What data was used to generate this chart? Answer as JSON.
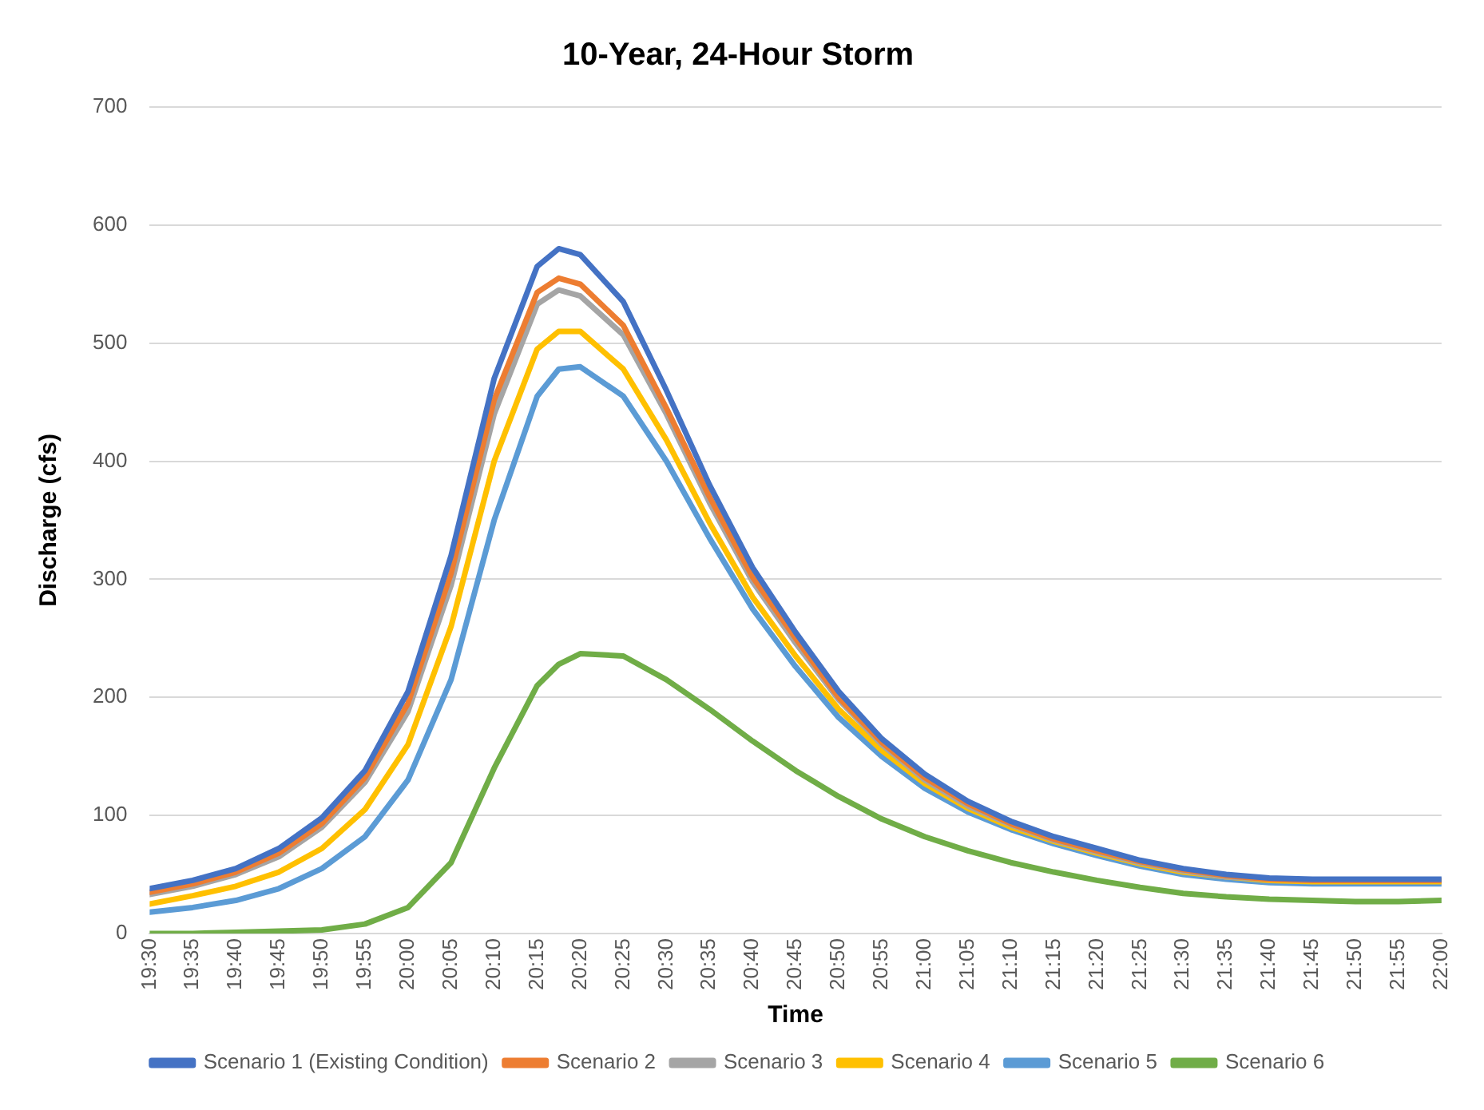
{
  "chart_data": {
    "type": "line",
    "title": "10-Year, 24-Hour Storm",
    "xlabel": "Time",
    "ylabel": "Discharge (cfs)",
    "x": [
      19.5,
      19.5833,
      19.6667,
      19.75,
      19.8333,
      19.9167,
      20,
      20.0833,
      20.1667,
      20.25,
      20.2917,
      20.3333,
      20.4167,
      20.5,
      20.5833,
      20.6667,
      20.75,
      20.8333,
      20.9167,
      21,
      21.0833,
      21.1667,
      21.25,
      21.3333,
      21.4167,
      21.5,
      21.5833,
      21.6667,
      21.75,
      21.8333,
      21.9167,
      22
    ],
    "xlim": [
      19.5,
      22
    ],
    "xticks": [
      {
        "value": 19.5,
        "label": "19:30"
      },
      {
        "value": 19.5833,
        "label": "19:35"
      },
      {
        "value": 19.6667,
        "label": "19:40"
      },
      {
        "value": 19.75,
        "label": "19:45"
      },
      {
        "value": 19.8333,
        "label": "19:50"
      },
      {
        "value": 19.9167,
        "label": "19:55"
      },
      {
        "value": 20,
        "label": "20:00"
      },
      {
        "value": 20.0833,
        "label": "20:05"
      },
      {
        "value": 20.1667,
        "label": "20:10"
      },
      {
        "value": 20.25,
        "label": "20:15"
      },
      {
        "value": 20.3333,
        "label": "20:20"
      },
      {
        "value": 20.4167,
        "label": "20:25"
      },
      {
        "value": 20.5,
        "label": "20:30"
      },
      {
        "value": 20.5833,
        "label": "20:35"
      },
      {
        "value": 20.6667,
        "label": "20:40"
      },
      {
        "value": 20.75,
        "label": "20:45"
      },
      {
        "value": 20.8333,
        "label": "20:50"
      },
      {
        "value": 20.9167,
        "label": "20:55"
      },
      {
        "value": 21,
        "label": "21:00"
      },
      {
        "value": 21.0833,
        "label": "21:05"
      },
      {
        "value": 21.1667,
        "label": "21:10"
      },
      {
        "value": 21.25,
        "label": "21:15"
      },
      {
        "value": 21.3333,
        "label": "21:20"
      },
      {
        "value": 21.4167,
        "label": "21:25"
      },
      {
        "value": 21.5,
        "label": "21:30"
      },
      {
        "value": 21.5833,
        "label": "21:35"
      },
      {
        "value": 21.6667,
        "label": "21:40"
      },
      {
        "value": 21.75,
        "label": "21:45"
      },
      {
        "value": 21.8333,
        "label": "21:50"
      },
      {
        "value": 21.9167,
        "label": "21:55"
      },
      {
        "value": 22,
        "label": "22:00"
      }
    ],
    "ylim": [
      0,
      700
    ],
    "yticks": [
      0,
      100,
      200,
      300,
      400,
      500,
      600,
      700
    ],
    "grid": "y",
    "legend": "bottom",
    "marker": "none",
    "line_style": "solid",
    "series": [
      {
        "name": "Scenario 1 (Existing Condition)",
        "color": "#4472c4",
        "values": [
          38,
          45,
          55,
          72,
          98,
          138,
          205,
          320,
          470,
          565,
          580,
          575,
          535,
          460,
          380,
          310,
          255,
          205,
          165,
          135,
          112,
          95,
          82,
          72,
          62,
          55,
          50,
          47,
          46,
          46,
          46,
          46
        ]
      },
      {
        "name": "Scenario 2",
        "color": "#ed7d31",
        "values": [
          35,
          42,
          52,
          68,
          93,
          132,
          195,
          305,
          452,
          543,
          555,
          550,
          515,
          445,
          370,
          302,
          250,
          200,
          162,
          132,
          110,
          93,
          80,
          70,
          61,
          54,
          49,
          46,
          45,
          45,
          45,
          45
        ]
      },
      {
        "name": "Scenario 3",
        "color": "#a5a5a5",
        "values": [
          33,
          40,
          50,
          65,
          90,
          128,
          188,
          295,
          440,
          533,
          545,
          540,
          507,
          440,
          365,
          298,
          246,
          198,
          160,
          130,
          108,
          92,
          79,
          69,
          60,
          53,
          48,
          46,
          45,
          null,
          null,
          null
        ]
      },
      {
        "name": "Scenario 4",
        "color": "#ffc000",
        "values": [
          25,
          32,
          40,
          52,
          72,
          105,
          160,
          260,
          400,
          495,
          510,
          510,
          478,
          418,
          348,
          285,
          235,
          190,
          155,
          127,
          106,
          90,
          78,
          68,
          59,
          52,
          48,
          45,
          44,
          44,
          44,
          44
        ]
      },
      {
        "name": "Scenario 5",
        "color": "#5b9bd5",
        "values": [
          18,
          22,
          28,
          38,
          55,
          82,
          130,
          215,
          350,
          455,
          478,
          480,
          455,
          400,
          335,
          275,
          226,
          183,
          150,
          123,
          103,
          88,
          76,
          66,
          57,
          50,
          46,
          43,
          42,
          42,
          42,
          42
        ]
      },
      {
        "name": "Scenario 6",
        "color": "#70ad47",
        "values": [
          0,
          0,
          1,
          2,
          3,
          8,
          22,
          60,
          140,
          210,
          228,
          237,
          235,
          215,
          190,
          163,
          138,
          116,
          97,
          82,
          70,
          60,
          52,
          45,
          39,
          34,
          31,
          29,
          28,
          27,
          27,
          28
        ]
      }
    ]
  }
}
